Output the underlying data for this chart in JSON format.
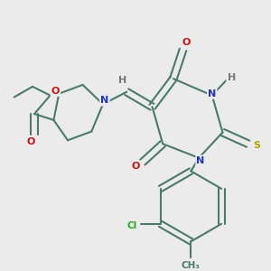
{
  "bg_color": "#ebebeb",
  "bond_color": "#4a7a6a",
  "bond_width": 1.5,
  "atom_colors": {
    "N": "#2233cc",
    "O": "#cc1111",
    "S": "#aaaa00",
    "Cl": "#22aa22",
    "H": "#777777",
    "C": "#4a7a6a"
  },
  "font_size": 8.0,
  "font_size_cl": 7.5
}
